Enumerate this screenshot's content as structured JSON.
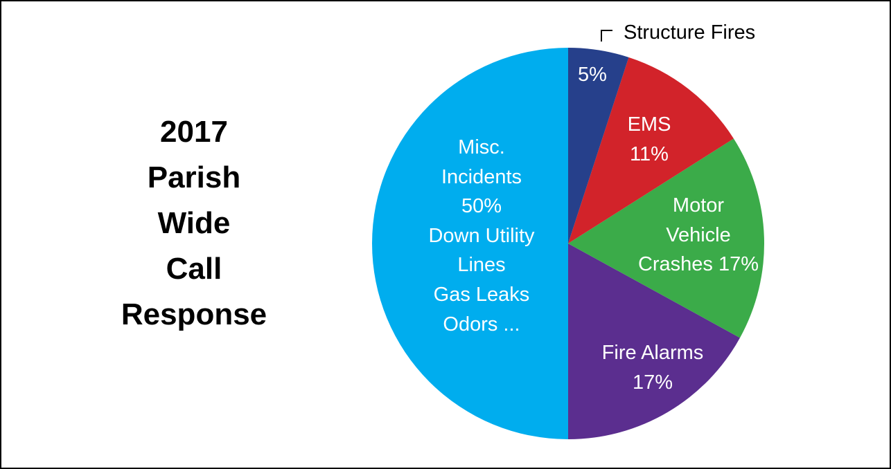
{
  "chart_data": {
    "type": "pie",
    "title": "2017 Parish Wide Call Response",
    "categories": [
      "Structure Fires",
      "EMS",
      "Motor Vehicle Crashes",
      "Fire Alarms",
      "Misc. Incidents"
    ],
    "values": [
      5,
      11,
      17,
      17,
      50
    ],
    "value_labels": [
      "5%",
      "11%",
      "17%",
      "17%",
      "50%"
    ],
    "colors": [
      "#26408b",
      "#d2232a",
      "#3bab49",
      "#5b2e8f",
      "#00adee"
    ],
    "annotations": [
      "Down Utility",
      "Lines",
      "Gas Leaks",
      "Odors ..."
    ]
  }
}
